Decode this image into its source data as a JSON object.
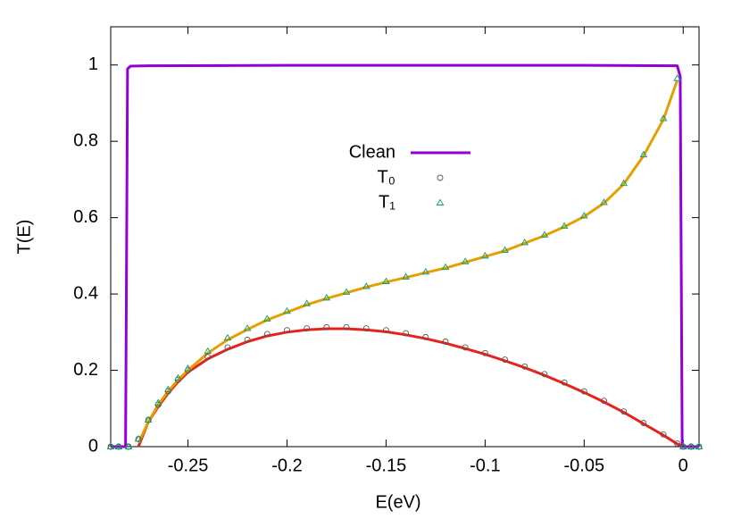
{
  "chart_data": {
    "type": "line",
    "x_label": "E(eV)",
    "y_label": "T(E)",
    "xlim": [
      -0.289,
      0.008
    ],
    "ylim": [
      0,
      1.1
    ],
    "xticks": [
      -0.25,
      -0.2,
      -0.15,
      -0.1,
      -0.05,
      0
    ],
    "yticks": [
      0,
      0.2,
      0.4,
      0.6,
      0.8,
      1
    ],
    "series": [
      {
        "color": "#e8221a",
        "style": "line",
        "x": [
          -0.275,
          -0.27,
          -0.265,
          -0.26,
          -0.255,
          -0.25,
          -0.24,
          -0.23,
          -0.22,
          -0.21,
          -0.2,
          -0.19,
          -0.18,
          -0.17,
          -0.16,
          -0.15,
          -0.14,
          -0.13,
          -0.12,
          -0.11,
          -0.1,
          -0.09,
          -0.08,
          -0.07,
          -0.06,
          -0.05,
          -0.04,
          -0.03,
          -0.02,
          -0.01,
          -0.003,
          0
        ],
        "values": [
          0,
          0.065,
          0.105,
          0.14,
          0.17,
          0.195,
          0.23,
          0.255,
          0.275,
          0.29,
          0.3,
          0.306,
          0.309,
          0.309,
          0.306,
          0.301,
          0.293,
          0.283,
          0.271,
          0.257,
          0.242,
          0.225,
          0.207,
          0.187,
          0.165,
          0.142,
          0.117,
          0.09,
          0.06,
          0.03,
          0.007,
          0
        ]
      },
      {
        "color": "#e69f00",
        "style": "line",
        "x": [
          -0.275,
          -0.27,
          -0.265,
          -0.26,
          -0.255,
          -0.25,
          -0.24,
          -0.23,
          -0.22,
          -0.21,
          -0.2,
          -0.19,
          -0.18,
          -0.17,
          -0.16,
          -0.15,
          -0.14,
          -0.13,
          -0.12,
          -0.11,
          -0.1,
          -0.09,
          -0.08,
          -0.07,
          -0.06,
          -0.05,
          -0.04,
          -0.03,
          -0.02,
          -0.01,
          -0.003
        ],
        "values": [
          0.01,
          0.065,
          0.11,
          0.145,
          0.175,
          0.2,
          0.245,
          0.28,
          0.307,
          0.332,
          0.352,
          0.372,
          0.388,
          0.403,
          0.418,
          0.431,
          0.443,
          0.456,
          0.468,
          0.483,
          0.498,
          0.513,
          0.533,
          0.553,
          0.576,
          0.603,
          0.638,
          0.688,
          0.762,
          0.857,
          0.96
        ]
      },
      {
        "name": "Clean",
        "color": "#9400d3",
        "style": "line",
        "x": [
          -0.289,
          -0.2815,
          -0.2805,
          -0.279,
          -0.27,
          -0.2,
          -0.1,
          -0.05,
          -0.003,
          -0.0015,
          -0.0005,
          0.008
        ],
        "values": [
          0,
          0,
          0.99,
          0.997,
          0.998,
          0.999,
          0.999,
          0.999,
          0.998,
          0.97,
          0,
          0
        ]
      },
      {
        "name": "T₀",
        "color": "#555555",
        "style": "points",
        "marker": "circle",
        "x": [
          -0.289,
          -0.285,
          -0.28,
          -0.275,
          -0.27,
          -0.265,
          -0.26,
          -0.255,
          -0.25,
          -0.24,
          -0.23,
          -0.22,
          -0.21,
          -0.2,
          -0.19,
          -0.18,
          -0.17,
          -0.16,
          -0.15,
          -0.14,
          -0.13,
          -0.12,
          -0.11,
          -0.1,
          -0.09,
          -0.08,
          -0.07,
          -0.06,
          -0.05,
          -0.04,
          -0.03,
          -0.02,
          -0.01,
          -0.003,
          0,
          0.004,
          0.008
        ],
        "values": [
          0,
          0,
          0,
          0.02,
          0.07,
          0.11,
          0.145,
          0.175,
          0.2,
          0.235,
          0.26,
          0.28,
          0.295,
          0.305,
          0.31,
          0.313,
          0.313,
          0.31,
          0.305,
          0.297,
          0.287,
          0.275,
          0.26,
          0.245,
          0.228,
          0.21,
          0.19,
          0.168,
          0.145,
          0.12,
          0.092,
          0.062,
          0.032,
          0.008,
          0,
          0,
          0
        ]
      },
      {
        "name": "T₁",
        "color": "#009e73",
        "style": "points",
        "marker": "triangle",
        "x": [
          -0.289,
          -0.285,
          -0.28,
          -0.275,
          -0.27,
          -0.265,
          -0.26,
          -0.255,
          -0.25,
          -0.24,
          -0.23,
          -0.22,
          -0.21,
          -0.2,
          -0.19,
          -0.18,
          -0.17,
          -0.16,
          -0.15,
          -0.14,
          -0.13,
          -0.12,
          -0.11,
          -0.1,
          -0.09,
          -0.08,
          -0.07,
          -0.06,
          -0.05,
          -0.04,
          -0.03,
          -0.02,
          -0.01,
          -0.003,
          0,
          0.004,
          0.008
        ],
        "values": [
          0,
          0,
          0,
          0.02,
          0.07,
          0.115,
          0.15,
          0.18,
          0.205,
          0.25,
          0.285,
          0.31,
          0.335,
          0.355,
          0.375,
          0.39,
          0.405,
          0.42,
          0.433,
          0.445,
          0.458,
          0.47,
          0.485,
          0.5,
          0.515,
          0.535,
          0.555,
          0.578,
          0.605,
          0.64,
          0.69,
          0.765,
          0.86,
          0.965,
          0,
          0,
          0
        ]
      }
    ]
  }
}
